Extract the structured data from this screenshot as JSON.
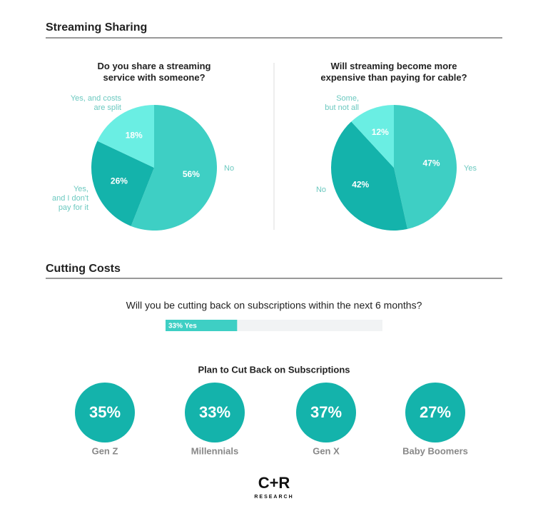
{
  "headings": [
    "Streaming Sharing",
    "Cutting Costs"
  ],
  "chart_data": [
    {
      "type": "pie",
      "title": "Do you share a streaming\nservice with someone?",
      "categories": [
        "No",
        "Yes,\nand I don't\npay for it",
        "Yes, and costs\nare split"
      ],
      "values": [
        56,
        26,
        18
      ],
      "value_labels": [
        "56%",
        "26%",
        "18%"
      ],
      "colors": [
        "#3ecfc4",
        "#14b3ab",
        "#6aeee3"
      ]
    },
    {
      "type": "pie",
      "title": "Will streaming become more\nexpensive than paying for cable?",
      "categories": [
        "Yes",
        "No",
        "Some,\nbut not all"
      ],
      "values": [
        47,
        42,
        12
      ],
      "value_labels": [
        "47%",
        "42%",
        "12%"
      ],
      "colors": [
        "#3ecfc4",
        "#14b3ab",
        "#6aeee3"
      ]
    },
    {
      "type": "progress",
      "title": "Will you be cutting back on subscriptions within the next 6 months?",
      "values": [
        33
      ],
      "value_labels": [
        "33% Yes"
      ],
      "xlim": [
        0,
        100
      ],
      "color": "#3ecfc4"
    },
    {
      "type": "circles",
      "title": "Plan to Cut Back on Subscriptions",
      "categories": [
        "Gen Z",
        "Millennials",
        "Gen X",
        "Baby Boomers"
      ],
      "values": [
        35,
        33,
        37,
        27
      ],
      "value_labels": [
        "35%",
        "33%",
        "37%",
        "27%"
      ],
      "color": "#14b3ab"
    }
  ],
  "logo": {
    "name": "C+R",
    "subtitle": "RESEARCH"
  }
}
